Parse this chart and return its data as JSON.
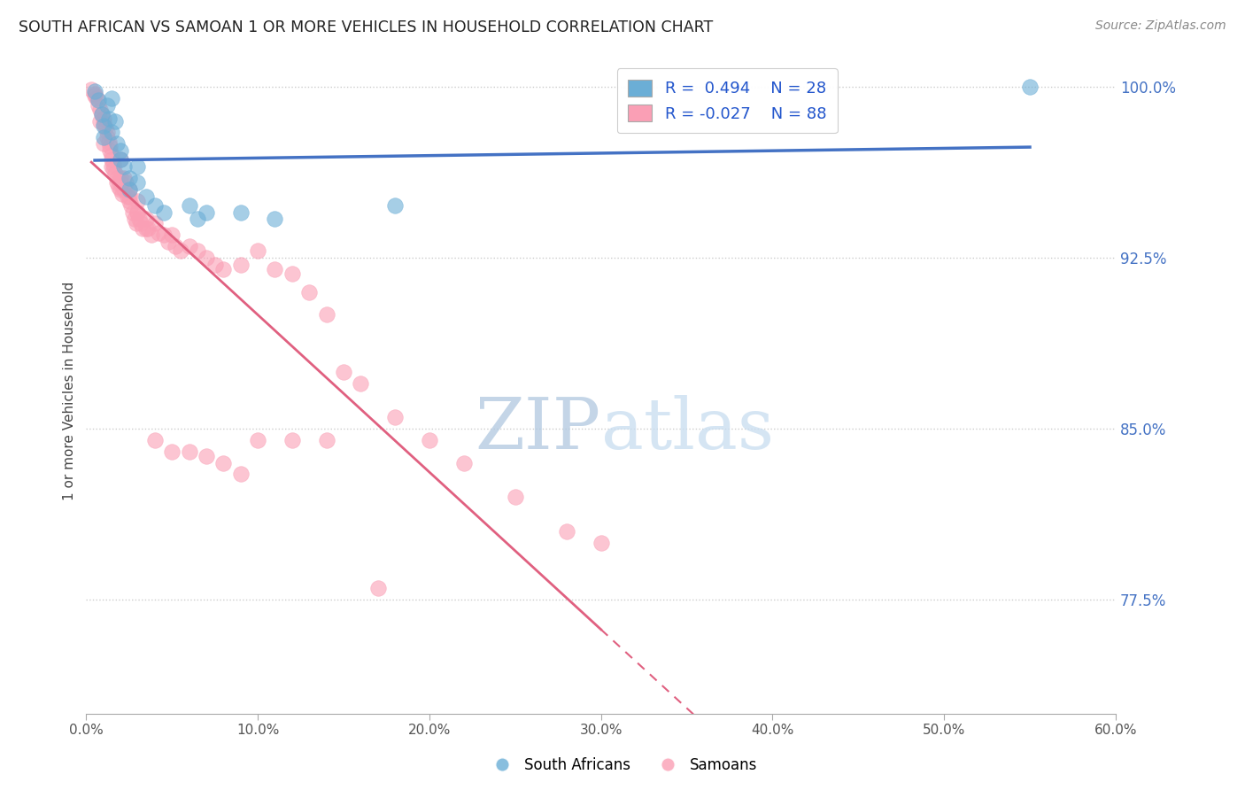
{
  "title": "SOUTH AFRICAN VS SAMOAN 1 OR MORE VEHICLES IN HOUSEHOLD CORRELATION CHART",
  "source": "Source: ZipAtlas.com",
  "ylabel": "1 or more Vehicles in Household",
  "xlabel": "",
  "xlim": [
    0.0,
    0.6
  ],
  "ylim": [
    0.725,
    1.008
  ],
  "xtick_labels": [
    "0.0%",
    "10.0%",
    "20.0%",
    "30.0%",
    "40.0%",
    "50.0%",
    "60.0%"
  ],
  "xtick_vals": [
    0.0,
    0.1,
    0.2,
    0.3,
    0.4,
    0.5,
    0.6
  ],
  "ytick_labels_right": [
    "77.5%",
    "85.0%",
    "92.5%",
    "100.0%"
  ],
  "ytick_vals_right": [
    0.775,
    0.85,
    0.925,
    1.0
  ],
  "blue_color": "#6baed6",
  "pink_color": "#fa9fb5",
  "blue_R": 0.494,
  "blue_N": 28,
  "pink_R": -0.027,
  "pink_N": 88,
  "watermark_zip": "ZIP",
  "watermark_atlas": "atlas",
  "watermark_color_zip": "#b8cfe8",
  "watermark_color_atlas": "#c8d8e8",
  "blue_scatter_x": [
    0.005,
    0.007,
    0.009,
    0.01,
    0.01,
    0.012,
    0.013,
    0.015,
    0.015,
    0.017,
    0.018,
    0.02,
    0.02,
    0.022,
    0.025,
    0.025,
    0.03,
    0.03,
    0.035,
    0.04,
    0.045,
    0.06,
    0.065,
    0.07,
    0.09,
    0.11,
    0.18,
    0.55
  ],
  "blue_scatter_y": [
    0.998,
    0.994,
    0.988,
    0.983,
    0.978,
    0.992,
    0.986,
    0.995,
    0.98,
    0.985,
    0.975,
    0.972,
    0.968,
    0.965,
    0.96,
    0.955,
    0.965,
    0.958,
    0.952,
    0.948,
    0.945,
    0.948,
    0.942,
    0.945,
    0.945,
    0.942,
    0.948,
    1.0
  ],
  "pink_scatter_x": [
    0.003,
    0.005,
    0.006,
    0.007,
    0.008,
    0.009,
    0.01,
    0.01,
    0.011,
    0.012,
    0.012,
    0.013,
    0.014,
    0.014,
    0.015,
    0.015,
    0.016,
    0.016,
    0.017,
    0.018,
    0.018,
    0.019,
    0.02,
    0.02,
    0.02,
    0.021,
    0.022,
    0.022,
    0.023,
    0.024,
    0.025,
    0.025,
    0.026,
    0.027,
    0.028,
    0.029,
    0.03,
    0.03,
    0.031,
    0.032,
    0.033,
    0.035,
    0.036,
    0.038,
    0.04,
    0.042,
    0.045,
    0.048,
    0.05,
    0.052,
    0.055,
    0.06,
    0.065,
    0.07,
    0.075,
    0.08,
    0.09,
    0.1,
    0.11,
    0.12,
    0.13,
    0.14,
    0.15,
    0.16,
    0.18,
    0.2,
    0.22,
    0.25,
    0.28,
    0.3,
    0.005,
    0.008,
    0.01,
    0.015,
    0.02,
    0.025,
    0.03,
    0.035,
    0.04,
    0.05,
    0.06,
    0.07,
    0.08,
    0.09,
    0.1,
    0.12,
    0.14,
    0.17
  ],
  "pink_scatter_y": [
    0.999,
    0.997,
    0.995,
    0.992,
    0.99,
    0.988,
    0.986,
    0.984,
    0.982,
    0.98,
    0.978,
    0.976,
    0.974,
    0.972,
    0.97,
    0.968,
    0.966,
    0.964,
    0.962,
    0.96,
    0.958,
    0.956,
    0.968,
    0.96,
    0.955,
    0.953,
    0.96,
    0.955,
    0.958,
    0.952,
    0.955,
    0.95,
    0.948,
    0.945,
    0.942,
    0.94,
    0.95,
    0.945,
    0.942,
    0.94,
    0.938,
    0.942,
    0.938,
    0.935,
    0.94,
    0.936,
    0.935,
    0.932,
    0.935,
    0.93,
    0.928,
    0.93,
    0.928,
    0.925,
    0.922,
    0.92,
    0.922,
    0.928,
    0.92,
    0.918,
    0.91,
    0.9,
    0.875,
    0.87,
    0.855,
    0.845,
    0.835,
    0.82,
    0.805,
    0.8,
    0.996,
    0.985,
    0.975,
    0.965,
    0.958,
    0.952,
    0.945,
    0.938,
    0.845,
    0.84,
    0.84,
    0.838,
    0.835,
    0.83,
    0.845,
    0.845,
    0.845,
    0.78
  ]
}
